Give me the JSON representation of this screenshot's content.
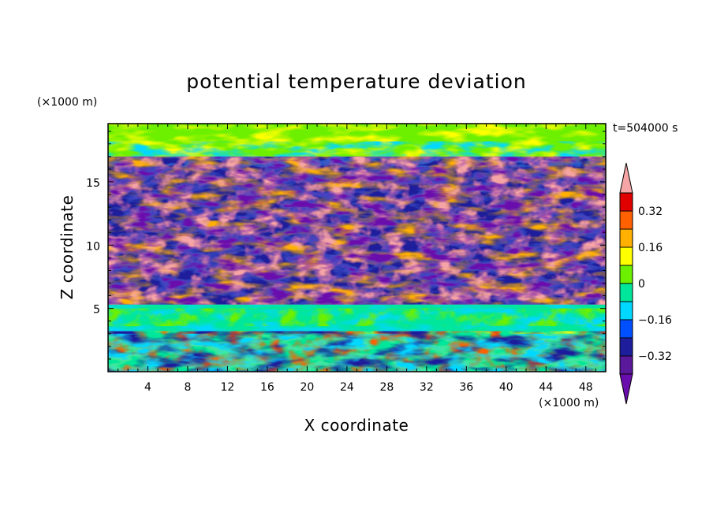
{
  "chart_data": {
    "type": "heatmap",
    "title": "potential temperature deviation",
    "xlabel": "X coordinate",
    "ylabel": "Z coordinate",
    "x_unit": "(×1000 m)",
    "y_unit": "(×1000 m)",
    "time_label": "t=504000 s",
    "xlim": [
      0,
      50
    ],
    "ylim": [
      0,
      19.6
    ],
    "x_ticks": [
      4,
      8,
      12,
      16,
      20,
      24,
      28,
      32,
      36,
      40,
      44,
      48
    ],
    "y_ticks": [
      5,
      10,
      15
    ],
    "colorbar": {
      "levels": [
        -0.4,
        -0.32,
        -0.24,
        -0.16,
        -0.08,
        0,
        0.08,
        0.16,
        0.24,
        0.32,
        0.4
      ],
      "colors": [
        "#6a0dad",
        "#5a189a",
        "#1e1e9c",
        "#0050ff",
        "#00d8ff",
        "#00e69a",
        "#6cf000",
        "#ffff00",
        "#ffb000",
        "#ff6000",
        "#e00000",
        "#f5a5a5"
      ],
      "labels": [
        "0.32",
        "0.16",
        "0",
        "−0.16",
        "−0.32"
      ],
      "label_values": [
        0.32,
        0.16,
        0,
        -0.16,
        -0.32
      ],
      "extend": "both"
    },
    "field": {
      "description_bands": [
        {
          "z_range": [
            0,
            3.2
          ],
          "pattern": "convective cells, mixed positive and negative"
        },
        {
          "z_range": [
            3.2,
            5.3
          ],
          "pattern": "near-neutral green/cyan layer"
        },
        {
          "z_range": [
            5.3,
            17
          ],
          "pattern": "layered alternating pink (+) and purple (-) sheets"
        },
        {
          "z_range": [
            17,
            19.6
          ],
          "pattern": "green/yellow near-zero upper layer"
        }
      ]
    }
  }
}
